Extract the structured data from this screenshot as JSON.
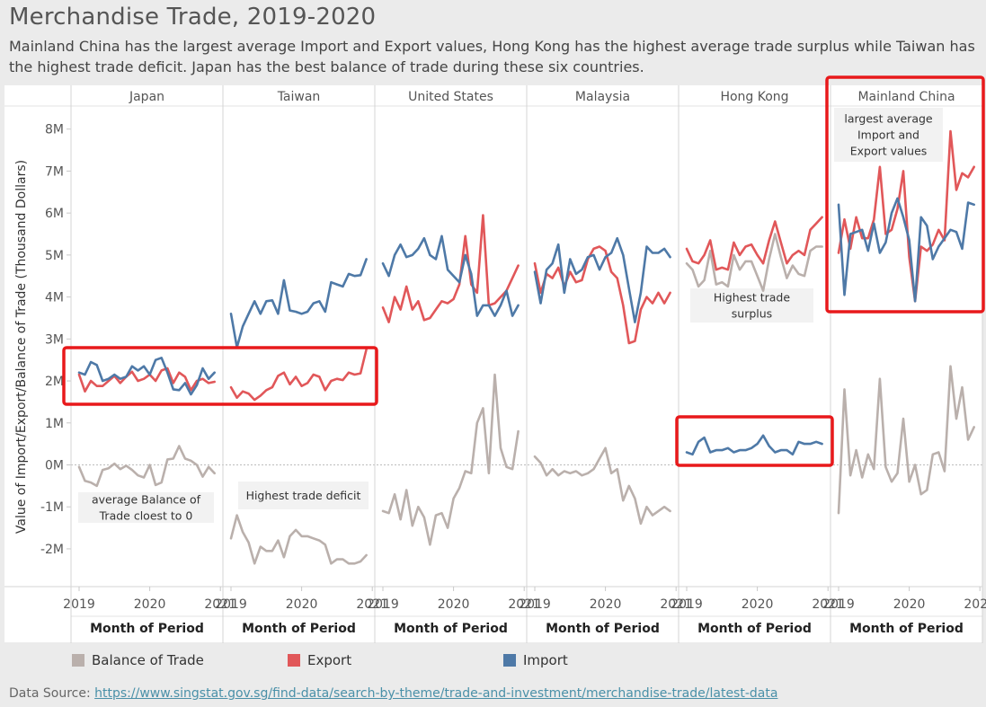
{
  "title": "Merchandise Trade, 2019-2020",
  "subtitle": "Mainland China has the largest average Import and Export values, Hong Kong has the highest average trade surplus while Taiwan has the highest trade deficit. Japan has the best balance of trade during these six countries.",
  "source_label": "Data Source: ",
  "source_link": "https://www.singstat.gov.sg/find-data/search-by-theme/trade-and-investment/merchandise-trade/latest-data",
  "legend": [
    {
      "label": "Balance of Trade",
      "color": "#bab0ac"
    },
    {
      "label": "Export",
      "color": "#e15759"
    },
    {
      "label": "Import",
      "color": "#4e79a7"
    }
  ],
  "chart_data": {
    "type": "line",
    "ylabel": "Value of Import/Export/Balance of Trade (Thousand Dollars)",
    "xlabel": "Month of Period",
    "ylim": [
      -2900000,
      8550000
    ],
    "yticks": [
      -2000000,
      -1000000,
      0,
      1000000,
      2000000,
      3000000,
      4000000,
      5000000,
      6000000,
      7000000,
      8000000
    ],
    "ytick_labels": [
      "-2M",
      "-1M",
      "0M",
      "1M",
      "2M",
      "3M",
      "4M",
      "5M",
      "6M",
      "7M",
      "8M"
    ],
    "xticks": [
      "2019",
      "2020",
      "2021"
    ],
    "months": 24,
    "colors": {
      "Balance of Trade": "#bab0ac",
      "Export": "#e15759",
      "Import": "#4e79a7"
    },
    "panels": [
      {
        "country": "Japan",
        "series": [
          {
            "name": "Import",
            "values": [
              2200000,
              2150000,
              2450000,
              2380000,
              2000000,
              2050000,
              2150000,
              2050000,
              2100000,
              2350000,
              2250000,
              2350000,
              2150000,
              2500000,
              2550000,
              2200000,
              1800000,
              1780000,
              1950000,
              1680000,
              1900000,
              2300000,
              2050000,
              2200000
            ]
          },
          {
            "name": "Export",
            "values": [
              2150000,
              1750000,
              2000000,
              1880000,
              1880000,
              2000000,
              2120000,
              1950000,
              2100000,
              2220000,
              2000000,
              2050000,
              2150000,
              2000000,
              2250000,
              2300000,
              1950000,
              2200000,
              2100000,
              1780000,
              2000000,
              2050000,
              1950000,
              1980000
            ]
          },
          {
            "name": "Balance of Trade",
            "values": [
              -50000,
              -380000,
              -420000,
              -500000,
              -120000,
              -80000,
              30000,
              -100000,
              -20000,
              -120000,
              -250000,
              -300000,
              0,
              -480000,
              -420000,
              130000,
              150000,
              450000,
              150000,
              100000,
              0,
              -280000,
              -50000,
              -200000
            ]
          }
        ]
      },
      {
        "country": "Taiwan",
        "series": [
          {
            "name": "Import",
            "values": [
              3600000,
              2800000,
              3300000,
              3600000,
              3900000,
              3600000,
              3900000,
              3920000,
              3600000,
              4400000,
              3680000,
              3650000,
              3600000,
              3650000,
              3850000,
              3900000,
              3650000,
              4350000,
              4300000,
              4250000,
              4550000,
              4500000,
              4520000,
              4900000
            ]
          },
          {
            "name": "Export",
            "values": [
              1850000,
              1600000,
              1750000,
              1700000,
              1550000,
              1650000,
              1780000,
              1850000,
              2120000,
              2200000,
              1920000,
              2100000,
              1880000,
              1950000,
              2150000,
              2100000,
              1780000,
              2000000,
              2050000,
              2020000,
              2200000,
              2150000,
              2180000,
              2750000
            ]
          },
          {
            "name": "Balance of Trade",
            "values": [
              -1750000,
              -1200000,
              -1600000,
              -1850000,
              -2350000,
              -1950000,
              -2050000,
              -2050000,
              -1800000,
              -2200000,
              -1700000,
              -1550000,
              -1700000,
              -1700000,
              -1750000,
              -1800000,
              -1900000,
              -2350000,
              -2250000,
              -2250000,
              -2350000,
              -2350000,
              -2300000,
              -2150000
            ]
          }
        ]
      },
      {
        "country": "United States",
        "series": [
          {
            "name": "Import",
            "values": [
              4800000,
              4500000,
              5000000,
              5250000,
              4950000,
              5000000,
              5150000,
              5400000,
              5000000,
              4900000,
              5450000,
              4650000,
              4500000,
              4350000,
              5000000,
              4550000,
              3550000,
              3800000,
              3800000,
              3550000,
              3800000,
              4150000,
              3550000,
              3800000
            ]
          },
          {
            "name": "Export",
            "values": [
              3750000,
              3400000,
              4000000,
              3700000,
              4250000,
              3700000,
              3900000,
              3450000,
              3500000,
              3700000,
              3900000,
              3850000,
              3950000,
              4300000,
              5450000,
              4300000,
              4100000,
              5950000,
              3800000,
              3850000,
              4000000,
              4150000,
              4450000,
              4750000
            ]
          },
          {
            "name": "Balance of Trade",
            "values": [
              -1100000,
              -1150000,
              -700000,
              -1300000,
              -600000,
              -1450000,
              -1000000,
              -1250000,
              -1900000,
              -1200000,
              -1150000,
              -1500000,
              -800000,
              -550000,
              -150000,
              -200000,
              1000000,
              1350000,
              -200000,
              2150000,
              400000,
              -50000,
              -100000,
              800000
            ]
          }
        ]
      },
      {
        "country": "Malaysia",
        "series": [
          {
            "name": "Import",
            "values": [
              4600000,
              3850000,
              4650000,
              4800000,
              5250000,
              4100000,
              4900000,
              4550000,
              4650000,
              4950000,
              5000000,
              4650000,
              4950000,
              5050000,
              5400000,
              5000000,
              4200000,
              3400000,
              4100000,
              5200000,
              5050000,
              5050000,
              5150000,
              4950000
            ]
          },
          {
            "name": "Export",
            "values": [
              4800000,
              4100000,
              4550000,
              4450000,
              4700000,
              4250000,
              4600000,
              4350000,
              4400000,
              4900000,
              5150000,
              5200000,
              5100000,
              4600000,
              4450000,
              3800000,
              2900000,
              2950000,
              3700000,
              4000000,
              3850000,
              4100000,
              3850000,
              4100000
            ]
          },
          {
            "name": "Balance of Trade",
            "values": [
              200000,
              50000,
              -250000,
              -100000,
              -250000,
              -150000,
              -200000,
              -150000,
              -250000,
              -200000,
              -100000,
              150000,
              400000,
              -200000,
              -100000,
              -850000,
              -500000,
              -800000,
              -1400000,
              -1000000,
              -1200000,
              -1100000,
              -1000000,
              -1100000
            ]
          }
        ]
      },
      {
        "country": "Hong Kong",
        "series": [
          {
            "name": "Import",
            "values": [
              300000,
              250000,
              550000,
              650000,
              300000,
              350000,
              350000,
              400000,
              300000,
              350000,
              350000,
              400000,
              500000,
              700000,
              450000,
              300000,
              350000,
              350000,
              250000,
              550000,
              500000,
              500000,
              550000,
              500000
            ]
          },
          {
            "name": "Export",
            "values": [
              5150000,
              4850000,
              4800000,
              5000000,
              5350000,
              4650000,
              4700000,
              4650000,
              5300000,
              5000000,
              5200000,
              5250000,
              5000000,
              4800000,
              5350000,
              5800000,
              5300000,
              4800000,
              5000000,
              5100000,
              5000000,
              5600000,
              5750000,
              5900000
            ]
          },
          {
            "name": "Balance of Trade",
            "values": [
              4800000,
              4650000,
              4250000,
              4400000,
              5100000,
              4300000,
              4350000,
              4250000,
              5000000,
              4650000,
              4850000,
              4850000,
              4500000,
              4150000,
              4900000,
              5500000,
              4950000,
              4450000,
              4750000,
              4550000,
              4500000,
              5100000,
              5200000,
              5200000
            ]
          }
        ]
      },
      {
        "country": "Mainland China",
        "series": [
          {
            "name": "Import",
            "values": [
              6200000,
              4050000,
              5500000,
              5550000,
              5600000,
              5100000,
              5750000,
              5050000,
              5300000,
              6000000,
              6350000,
              5900000,
              5350000,
              3900000,
              5900000,
              5700000,
              4900000,
              5200000,
              5400000,
              5600000,
              5550000,
              5150000,
              6250000,
              6200000
            ]
          },
          {
            "name": "Export",
            "values": [
              5050000,
              5850000,
              5150000,
              5900000,
              5400000,
              5400000,
              5850000,
              7100000,
              5500000,
              5600000,
              6100000,
              7000000,
              4950000,
              3900000,
              5200000,
              5100000,
              5250000,
              5600000,
              5350000,
              7950000,
              6550000,
              6950000,
              6850000,
              7100000
            ]
          },
          {
            "name": "Balance of Trade",
            "values": [
              -1150000,
              1800000,
              -250000,
              350000,
              -300000,
              250000,
              -100000,
              2050000,
              -50000,
              -400000,
              -200000,
              1100000,
              -400000,
              0,
              -700000,
              -600000,
              250000,
              300000,
              -150000,
              2350000,
              1100000,
              1850000,
              600000,
              900000
            ]
          }
        ]
      }
    ],
    "annotations": [
      {
        "panel": 0,
        "lines": [
          "average Balance of",
          "Trade cloest to 0"
        ]
      },
      {
        "panel": 1,
        "lines": [
          "Highest trade deficit"
        ]
      },
      {
        "panel": 4,
        "lines": [
          "Highest trade",
          "surplus"
        ]
      },
      {
        "panel": 5,
        "lines": [
          "largest average",
          "Import and",
          "Export values"
        ]
      }
    ]
  }
}
